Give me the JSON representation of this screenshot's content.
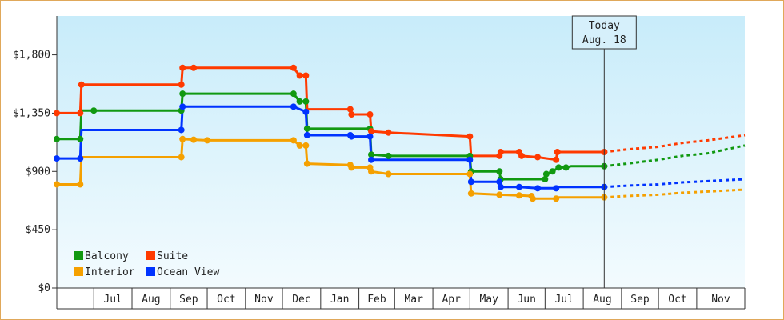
{
  "chart_data": {
    "type": "line",
    "title": "",
    "xlabel": "",
    "ylabel": "",
    "ylim": [
      0,
      2100
    ],
    "y_ticks": [
      {
        "value": 0,
        "label": "$0"
      },
      {
        "value": 450,
        "label": "$450"
      },
      {
        "value": 900,
        "label": "$900"
      },
      {
        "value": 1350,
        "label": "$1,350"
      },
      {
        "value": 1800,
        "label": "$1,800"
      }
    ],
    "x_start": "2011-06-01",
    "x_end": "2012-12-10",
    "x_ticks": [
      {
        "date": "2011-07-01",
        "label": "Jul"
      },
      {
        "date": "2011-08-01",
        "label": "Aug"
      },
      {
        "date": "2011-09-01",
        "label": "Sep"
      },
      {
        "date": "2011-10-01",
        "label": "Oct"
      },
      {
        "date": "2011-11-01",
        "label": "Nov"
      },
      {
        "date": "2011-12-01",
        "label": "Dec"
      },
      {
        "date": "2012-01-01",
        "label": "Jan"
      },
      {
        "date": "2012-02-01",
        "label": "Feb"
      },
      {
        "date": "2012-03-01",
        "label": "Mar"
      },
      {
        "date": "2012-04-01",
        "label": "Apr"
      },
      {
        "date": "2012-05-01",
        "label": "May"
      },
      {
        "date": "2012-06-01",
        "label": "Jun"
      },
      {
        "date": "2012-07-01",
        "label": "Jul"
      },
      {
        "date": "2012-08-01",
        "label": "Aug"
      },
      {
        "date": "2012-09-01",
        "label": "Sep"
      },
      {
        "date": "2012-10-01",
        "label": "Oct"
      },
      {
        "date": "2012-11-01",
        "label": "Nov"
      }
    ],
    "today": {
      "line1": "Today",
      "line2": "Aug. 18",
      "date": "2012-08-18"
    },
    "legend_position": "bottom-left",
    "grid": false,
    "series": [
      {
        "name": "Balcony",
        "color": "#119911",
        "points": [
          [
            "2011-06-01",
            1150
          ],
          [
            "2011-06-20",
            1150
          ],
          [
            "2011-06-21",
            1370
          ],
          [
            "2011-09-10",
            1370
          ],
          [
            "2011-09-11",
            1500
          ],
          [
            "2011-12-10",
            1500
          ],
          [
            "2011-12-15",
            1440
          ],
          [
            "2011-12-20",
            1440
          ],
          [
            "2011-12-21",
            1230
          ],
          [
            "2012-02-10",
            1230
          ],
          [
            "2012-02-11",
            1030
          ],
          [
            "2012-02-25",
            1020
          ],
          [
            "2012-05-01",
            1020
          ],
          [
            "2012-05-02",
            900
          ],
          [
            "2012-05-25",
            900
          ],
          [
            "2012-05-26",
            840
          ],
          [
            "2012-07-01",
            840
          ],
          [
            "2012-07-02",
            880
          ],
          [
            "2012-07-07",
            900
          ],
          [
            "2012-07-12",
            930
          ],
          [
            "2012-07-18",
            930
          ],
          [
            "2012-07-22",
            940
          ],
          [
            "2012-08-18",
            940
          ]
        ],
        "projection": [
          [
            "2012-08-18",
            940
          ],
          [
            "2012-09-05",
            960
          ],
          [
            "2012-10-01",
            990
          ],
          [
            "2012-10-20",
            1020
          ],
          [
            "2012-11-10",
            1040
          ],
          [
            "2012-12-10",
            1100
          ]
        ]
      },
      {
        "name": "Interior",
        "color": "#f5a000",
        "points": [
          [
            "2011-06-01",
            800
          ],
          [
            "2011-06-20",
            800
          ],
          [
            "2011-06-21",
            1010
          ],
          [
            "2011-09-10",
            1010
          ],
          [
            "2011-09-11",
            1150
          ],
          [
            "2011-09-20",
            1145
          ],
          [
            "2011-10-01",
            1140
          ],
          [
            "2011-12-10",
            1140
          ],
          [
            "2011-12-15",
            1100
          ],
          [
            "2011-12-20",
            1100
          ],
          [
            "2011-12-21",
            960
          ],
          [
            "2012-01-25",
            950
          ],
          [
            "2012-01-26",
            930
          ],
          [
            "2012-02-10",
            930
          ],
          [
            "2012-02-11",
            900
          ],
          [
            "2012-02-25",
            880
          ],
          [
            "2012-05-01",
            880
          ],
          [
            "2012-05-02",
            730
          ],
          [
            "2012-05-25",
            720
          ],
          [
            "2012-06-10",
            715
          ],
          [
            "2012-06-20",
            710
          ],
          [
            "2012-06-21",
            690
          ],
          [
            "2012-07-10",
            690
          ],
          [
            "2012-07-11",
            700
          ],
          [
            "2012-08-18",
            700
          ]
        ],
        "projection": [
          [
            "2012-08-18",
            700
          ],
          [
            "2012-09-05",
            710
          ],
          [
            "2012-10-01",
            720
          ],
          [
            "2012-10-20",
            735
          ],
          [
            "2012-11-10",
            745
          ],
          [
            "2012-12-10",
            760
          ]
        ]
      },
      {
        "name": "Suite",
        "color": "#ff3a00",
        "points": [
          [
            "2011-06-01",
            1350
          ],
          [
            "2011-06-20",
            1350
          ],
          [
            "2011-06-21",
            1570
          ],
          [
            "2011-09-10",
            1570
          ],
          [
            "2011-09-11",
            1700
          ],
          [
            "2011-09-20",
            1700
          ],
          [
            "2011-12-10",
            1700
          ],
          [
            "2011-12-15",
            1640
          ],
          [
            "2011-12-20",
            1640
          ],
          [
            "2011-12-21",
            1380
          ],
          [
            "2012-01-25",
            1380
          ],
          [
            "2012-01-26",
            1340
          ],
          [
            "2012-02-10",
            1340
          ],
          [
            "2012-02-11",
            1210
          ],
          [
            "2012-02-25",
            1200
          ],
          [
            "2012-05-01",
            1170
          ],
          [
            "2012-05-02",
            1020
          ],
          [
            "2012-05-25",
            1020
          ],
          [
            "2012-05-26",
            1050
          ],
          [
            "2012-06-10",
            1050
          ],
          [
            "2012-06-12",
            1020
          ],
          [
            "2012-06-25",
            1010
          ],
          [
            "2012-07-10",
            990
          ],
          [
            "2012-07-11",
            1050
          ],
          [
            "2012-08-18",
            1050
          ]
        ],
        "projection": [
          [
            "2012-08-18",
            1050
          ],
          [
            "2012-09-05",
            1070
          ],
          [
            "2012-10-01",
            1090
          ],
          [
            "2012-10-20",
            1120
          ],
          [
            "2012-11-10",
            1140
          ],
          [
            "2012-12-10",
            1180
          ]
        ]
      },
      {
        "name": "Ocean View",
        "color": "#0033ff",
        "points": [
          [
            "2011-06-01",
            1000
          ],
          [
            "2011-06-20",
            1000
          ],
          [
            "2011-06-21",
            1220
          ],
          [
            "2011-09-10",
            1220
          ],
          [
            "2011-09-11",
            1400
          ],
          [
            "2011-12-10",
            1400
          ],
          [
            "2011-12-20",
            1360
          ],
          [
            "2011-12-21",
            1180
          ],
          [
            "2012-01-25",
            1180
          ],
          [
            "2012-01-26",
            1170
          ],
          [
            "2012-02-10",
            1170
          ],
          [
            "2012-02-11",
            990
          ],
          [
            "2012-05-01",
            990
          ],
          [
            "2012-05-02",
            820
          ],
          [
            "2012-05-25",
            820
          ],
          [
            "2012-05-26",
            780
          ],
          [
            "2012-06-10",
            780
          ],
          [
            "2012-06-25",
            770
          ],
          [
            "2012-07-10",
            770
          ],
          [
            "2012-07-11",
            780
          ],
          [
            "2012-08-18",
            780
          ]
        ],
        "projection": [
          [
            "2012-08-18",
            780
          ],
          [
            "2012-09-05",
            790
          ],
          [
            "2012-10-01",
            800
          ],
          [
            "2012-10-20",
            815
          ],
          [
            "2012-11-10",
            825
          ],
          [
            "2012-12-10",
            840
          ]
        ]
      }
    ],
    "markers": [
      {
        "series": "Balcony",
        "dates": [
          "2011-06-01",
          "2011-06-20",
          "2011-07-01",
          "2011-09-10",
          "2011-09-11",
          "2011-12-10",
          "2011-12-15",
          "2011-12-20",
          "2011-12-21",
          "2012-02-10",
          "2012-02-11",
          "2012-02-25",
          "2012-05-01",
          "2012-05-02",
          "2012-05-25",
          "2012-05-26",
          "2012-07-01",
          "2012-07-02",
          "2012-07-07",
          "2012-07-12",
          "2012-07-18",
          "2012-08-18"
        ]
      },
      {
        "series": "Interior",
        "dates": [
          "2011-06-01",
          "2011-06-20",
          "2011-09-10",
          "2011-09-11",
          "2011-09-20",
          "2011-10-01",
          "2011-12-10",
          "2011-12-15",
          "2011-12-20",
          "2011-12-21",
          "2012-01-25",
          "2012-01-26",
          "2012-02-10",
          "2012-02-11",
          "2012-02-25",
          "2012-05-01",
          "2012-05-02",
          "2012-05-25",
          "2012-06-10",
          "2012-06-20",
          "2012-06-21",
          "2012-07-10",
          "2012-08-18"
        ]
      },
      {
        "series": "Suite",
        "dates": [
          "2011-06-01",
          "2011-06-20",
          "2011-06-21",
          "2011-09-10",
          "2011-09-11",
          "2011-09-20",
          "2011-12-10",
          "2011-12-15",
          "2011-12-20",
          "2012-01-25",
          "2012-01-26",
          "2012-02-10",
          "2012-02-11",
          "2012-02-25",
          "2012-05-01",
          "2012-05-25",
          "2012-05-26",
          "2012-06-10",
          "2012-06-12",
          "2012-06-25",
          "2012-07-10",
          "2012-07-11",
          "2012-08-18"
        ]
      },
      {
        "series": "Ocean View",
        "dates": [
          "2011-06-01",
          "2011-06-20",
          "2011-09-10",
          "2011-09-11",
          "2011-12-10",
          "2011-12-20",
          "2011-12-21",
          "2012-01-25",
          "2012-01-26",
          "2012-02-10",
          "2012-02-11",
          "2012-05-01",
          "2012-05-02",
          "2012-05-25",
          "2012-05-26",
          "2012-06-10",
          "2012-06-25",
          "2012-07-10",
          "2012-08-18"
        ]
      }
    ],
    "legend": [
      {
        "label": "Balcony",
        "color": "#119911"
      },
      {
        "label": "Suite",
        "color": "#ff3a00"
      },
      {
        "label": "Interior",
        "color": "#f5a000"
      },
      {
        "label": "Ocean View",
        "color": "#0033ff"
      }
    ]
  }
}
